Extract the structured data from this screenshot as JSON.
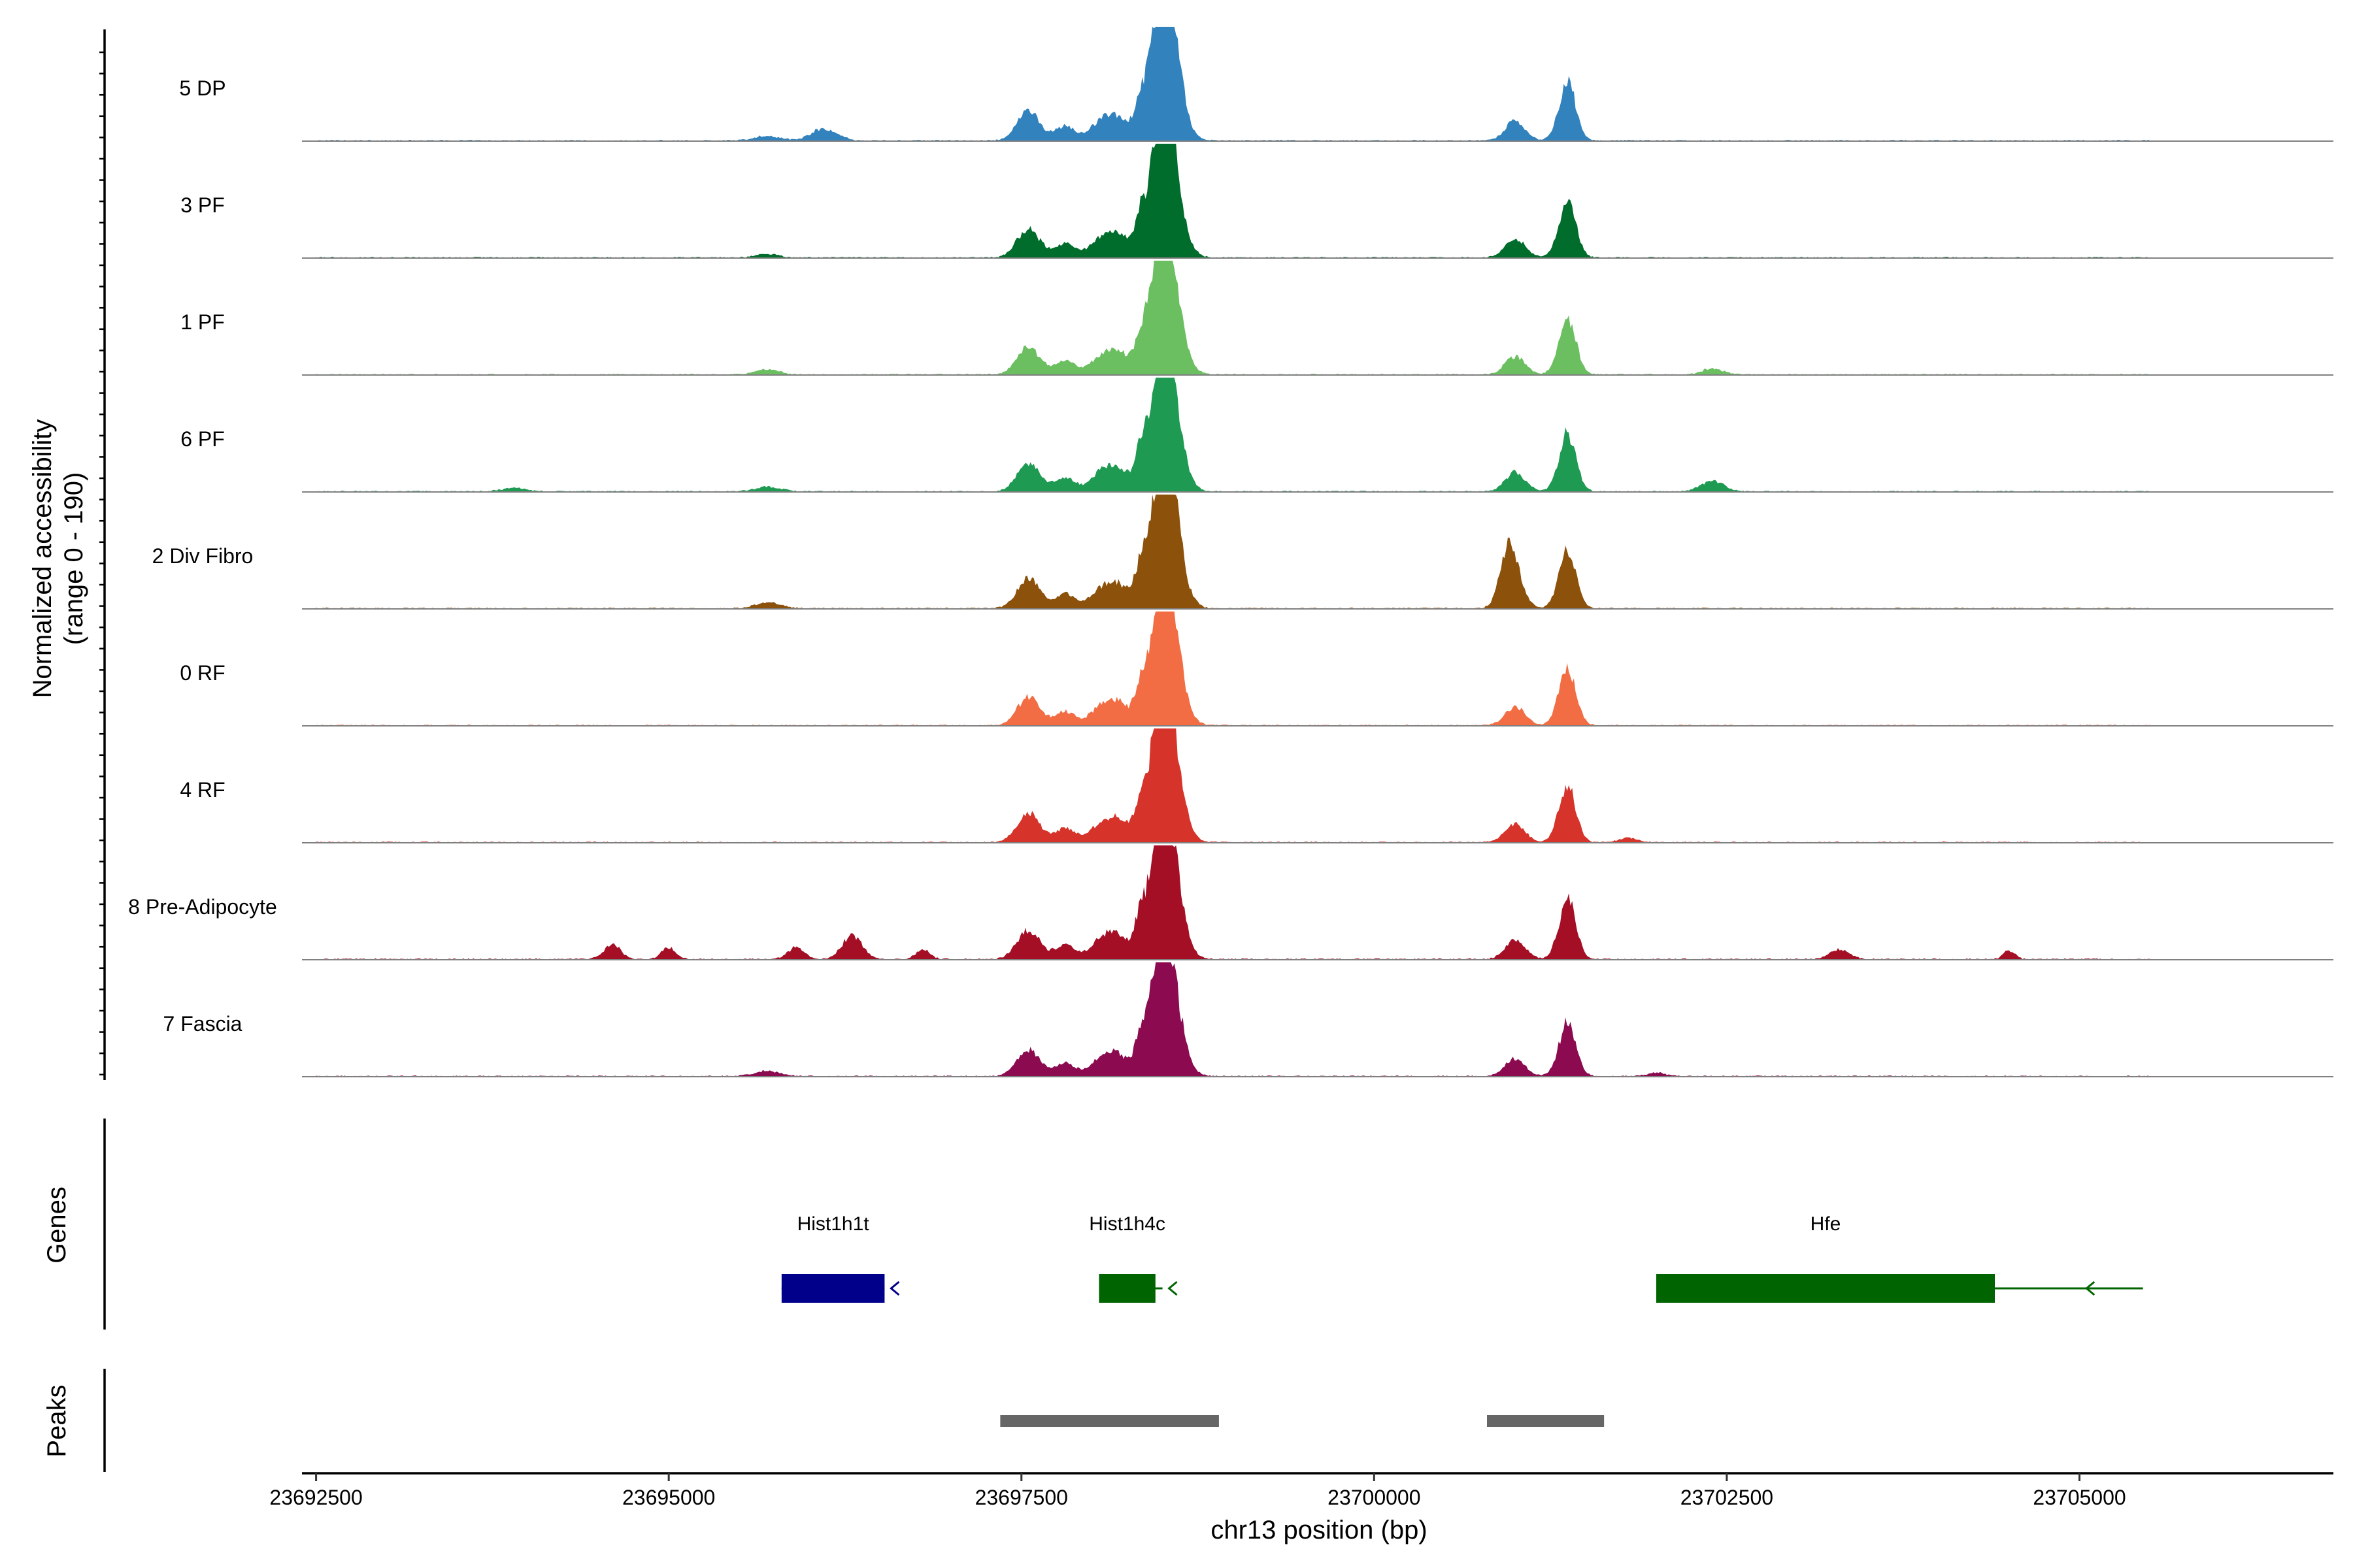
{
  "chart_data": {
    "type": "area",
    "title": "",
    "xlabel": "chr13 position (bp)",
    "ylabel_line1": "Normalized accessibility",
    "ylabel_line2": "(range 0 - 190)",
    "y_range": [
      0,
      190
    ],
    "x_range": [
      23692400,
      23706800
    ],
    "x_ticks": [
      23692500,
      23695000,
      23697500,
      23700000,
      23702500,
      23705000
    ],
    "x_tick_labels": [
      "23692500",
      "23695000",
      "23697500",
      "23700000",
      "23702500",
      "23705000"
    ],
    "track_range_bp": [
      23692500,
      23705500
    ],
    "genes_title": "Genes",
    "peaks_title": "Peaks",
    "peak_kernels": [
      {
        "center": 23698495,
        "width": 80,
        "weight": 1.0
      },
      {
        "center": 23698540,
        "width": 90,
        "weight": 0.8
      },
      {
        "center": 23698340,
        "width": 40,
        "weight": 0.3
      },
      {
        "center": 23698200,
        "width": 70,
        "weight": 0.2
      },
      {
        "center": 23698070,
        "width": 80,
        "weight": 0.2
      },
      {
        "center": 23697810,
        "width": 70,
        "weight": 0.15
      },
      {
        "center": 23697550,
        "width": 80,
        "weight": 0.3
      },
      {
        "center": 23701370,
        "width": 60,
        "weight": 0.6
      },
      {
        "center": 23701000,
        "width": 70,
        "weight": 0.2
      }
    ],
    "series": [
      {
        "name": "5 DP",
        "color": "#3182bd",
        "peak_value": 183,
        "extra_peaks": [
          {
            "center": 23696100,
            "width": 90,
            "height": 0.13
          },
          {
            "center": 23695700,
            "width": 90,
            "height": 0.05
          }
        ]
      },
      {
        "name": "3 PF",
        "color": "#006d2c",
        "peak_value": 181,
        "extra_peaks": [
          {
            "center": 23695700,
            "width": 80,
            "height": 0.04
          }
        ]
      },
      {
        "name": "1 PF",
        "color": "#6bbf61",
        "peak_value": 176,
        "extra_peaks": [
          {
            "center": 23695700,
            "width": 80,
            "height": 0.06
          },
          {
            "center": 23702400,
            "width": 70,
            "height": 0.07
          }
        ]
      },
      {
        "name": "6 PF",
        "color": "#1e9a52",
        "peak_value": 181,
        "extra_peaks": [
          {
            "center": 23702400,
            "width": 80,
            "height": 0.12
          },
          {
            "center": 23695700,
            "width": 90,
            "height": 0.05
          },
          {
            "center": 23693900,
            "width": 80,
            "height": 0.04
          }
        ]
      },
      {
        "name": "2 Div Fibro",
        "color": "#8c510a",
        "peak_value": 186,
        "extra_peaks": [
          {
            "center": 23695700,
            "width": 90,
            "height": 0.06
          },
          {
            "center": 23700950,
            "width": 60,
            "height": 0.5,
            "abs": true
          }
        ]
      },
      {
        "name": "0 RF",
        "color": "#f26d43",
        "peak_value": 178,
        "extra_peaks": []
      },
      {
        "name": "4 RF",
        "color": "#d6342b",
        "peak_value": 180,
        "extra_peaks": [
          {
            "center": 23701800,
            "width": 60,
            "height": 0.05
          }
        ]
      },
      {
        "name": "8 Pre-Adipocyte",
        "color": "#a50f26",
        "peak_value": 188,
        "extra_peaks": [
          {
            "center": 23696300,
            "width": 70,
            "height": 0.25
          },
          {
            "center": 23695900,
            "width": 60,
            "height": 0.12
          },
          {
            "center": 23694600,
            "width": 60,
            "height": 0.15
          },
          {
            "center": 23695000,
            "width": 50,
            "height": 0.12
          },
          {
            "center": 23696800,
            "width": 50,
            "height": 0.1
          },
          {
            "center": 23703300,
            "width": 70,
            "height": 0.1
          },
          {
            "center": 23704500,
            "width": 40,
            "height": 0.09
          }
        ]
      },
      {
        "name": "7 Fascia",
        "color": "#8b0a50",
        "peak_value": 169,
        "extra_peaks": [
          {
            "center": 23695700,
            "width": 90,
            "height": 0.06
          },
          {
            "center": 23702000,
            "width": 60,
            "height": 0.04
          }
        ]
      }
    ],
    "genes": [
      {
        "name": "Hist1h1t",
        "start": 23695800,
        "end": 23696530,
        "strand": "-",
        "color": "#00008b",
        "thick_end": 23696530
      },
      {
        "name": "Hist1h4c",
        "start": 23698050,
        "end": 23698500,
        "strand": "-",
        "color": "#006400",
        "thick_end": 23698450
      },
      {
        "name": "Hfe",
        "start": 23702000,
        "end": 23705450,
        "strand": "-",
        "color": "#006400",
        "thick_end": 23704400
      }
    ],
    "peaks": [
      {
        "start": 23697350,
        "end": 23698900
      },
      {
        "start": 23700800,
        "end": 23701630
      }
    ]
  }
}
